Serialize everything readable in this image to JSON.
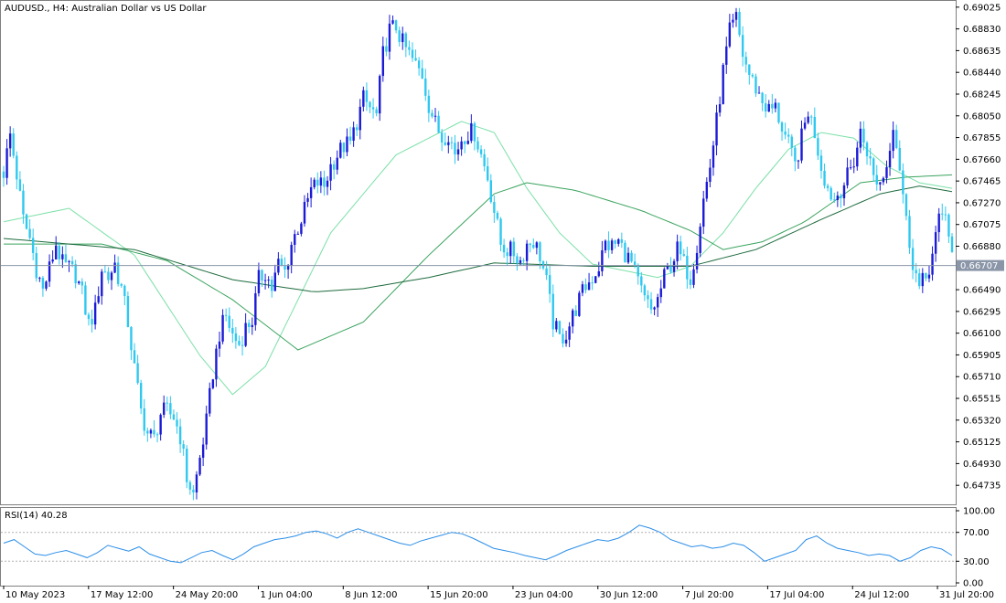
{
  "header": {
    "symbol": "AUDUSD.",
    "timeframe": "H4",
    "description": "Australian Dollar vs US Dollar",
    "title": "AUDUSD., H4:  Australian Dollar vs US Dollar"
  },
  "rsi_panel": {
    "label": "RSI(14) 40.28"
  },
  "current_price_label": "0.66707",
  "colors": {
    "bull_candle": "#1b1bd6",
    "bear_candle": "#2fc8f0",
    "ma_fast": "#7be0a8",
    "ma_mid": "#3aa35e",
    "ma_slow": "#1d6b3d",
    "rsi_line": "#2b8ee8",
    "price_line": "#8a96a8",
    "current_price_bg": "#8a96a8"
  },
  "chart_data": [
    {
      "type": "candlestick",
      "title": "AUDUSD., H4:  Australian Dollar vs US Dollar",
      "ylim": [
        0.6463,
        0.6904
      ],
      "y_ticks": [
        "0.69025",
        "0.68830",
        "0.68635",
        "0.68440",
        "0.68245",
        "0.68050",
        "0.67855",
        "0.67660",
        "0.67465",
        "0.67270",
        "0.67075",
        "0.66880",
        "0.66707",
        "0.66490",
        "0.66295",
        "0.66100",
        "0.65905",
        "0.65710",
        "0.65515",
        "0.65320",
        "0.65125",
        "0.64930",
        "0.64735"
      ],
      "x_ticks": [
        "10 May 2023",
        "17 May 12:00",
        "24 May 20:00",
        "1 Jun 04:00",
        "8 Jun 12:00",
        "15 Jun 20:00",
        "23 Jun 04:00",
        "30 Jun 12:00",
        "7 Jul 20:00",
        "17 Jul 04:00",
        "24 Jul 12:00",
        "31 Jul 20:00"
      ],
      "current_price": 0.66707,
      "close_path": [
        [
          0,
          0.6755
        ],
        [
          2,
          0.6788
        ],
        [
          4,
          0.6752
        ],
        [
          6,
          0.6712
        ],
        [
          8,
          0.6695
        ],
        [
          10,
          0.6668
        ],
        [
          12,
          0.6648
        ],
        [
          14,
          0.6668
        ],
        [
          16,
          0.669
        ],
        [
          18,
          0.6672
        ],
        [
          20,
          0.6668
        ],
        [
          22,
          0.6663
        ],
        [
          24,
          0.6645
        ],
        [
          26,
          0.6618
        ],
        [
          28,
          0.663
        ],
        [
          30,
          0.6668
        ],
        [
          32,
          0.666
        ],
        [
          34,
          0.6672
        ],
        [
          36,
          0.665
        ],
        [
          38,
          0.662
        ],
        [
          40,
          0.6578
        ],
        [
          42,
          0.654
        ],
        [
          44,
          0.652
        ],
        [
          46,
          0.6515
        ],
        [
          48,
          0.6538
        ],
        [
          50,
          0.654
        ],
        [
          52,
          0.6535
        ],
        [
          54,
          0.6518
        ],
        [
          56,
          0.648
        ],
        [
          58,
          0.6465
        ],
        [
          60,
          0.6498
        ],
        [
          62,
          0.653
        ],
        [
          64,
          0.6575
        ],
        [
          66,
          0.661
        ],
        [
          68,
          0.6625
        ],
        [
          70,
          0.6608
        ],
        [
          72,
          0.66
        ],
        [
          74,
          0.6615
        ],
        [
          76,
          0.6622
        ],
        [
          78,
          0.6658
        ],
        [
          80,
          0.6665
        ],
        [
          82,
          0.665
        ],
        [
          84,
          0.6672
        ],
        [
          86,
          0.6665
        ],
        [
          88,
          0.669
        ],
        [
          90,
          0.6705
        ],
        [
          92,
          0.672
        ],
        [
          94,
          0.6738
        ],
        [
          96,
          0.6745
        ],
        [
          98,
          0.6742
        ],
        [
          100,
          0.676
        ],
        [
          102,
          0.677
        ],
        [
          104,
          0.6778
        ],
        [
          106,
          0.678
        ],
        [
          108,
          0.68
        ],
        [
          110,
          0.682
        ],
        [
          112,
          0.6812
        ],
        [
          114,
          0.6805
        ],
        [
          116,
          0.686
        ],
        [
          118,
          0.6882
        ],
        [
          120,
          0.6885
        ],
        [
          122,
          0.687
        ],
        [
          124,
          0.686
        ],
        [
          126,
          0.685
        ],
        [
          128,
          0.6842
        ],
        [
          130,
          0.6815
        ],
        [
          132,
          0.6798
        ],
        [
          134,
          0.6785
        ],
        [
          136,
          0.679
        ],
        [
          138,
          0.677
        ],
        [
          140,
          0.6785
        ],
        [
          142,
          0.679
        ],
        [
          144,
          0.679
        ],
        [
          146,
          0.677
        ],
        [
          148,
          0.675
        ],
        [
          150,
          0.672
        ],
        [
          152,
          0.669
        ],
        [
          154,
          0.6685
        ],
        [
          156,
          0.6682
        ],
        [
          158,
          0.6675
        ],
        [
          160,
          0.669
        ],
        [
          162,
          0.6693
        ],
        [
          164,
          0.668
        ],
        [
          166,
          0.6655
        ],
        [
          168,
          0.662
        ],
        [
          170,
          0.6605
        ],
        [
          172,
          0.661
        ],
        [
          174,
          0.6625
        ],
        [
          176,
          0.664
        ],
        [
          178,
          0.6652
        ],
        [
          180,
          0.666
        ],
        [
          182,
          0.667
        ],
        [
          184,
          0.669
        ],
        [
          186,
          0.6688
        ],
        [
          188,
          0.6692
        ],
        [
          190,
          0.6682
        ],
        [
          192,
          0.6672
        ],
        [
          194,
          0.6655
        ],
        [
          196,
          0.664
        ],
        [
          198,
          0.663
        ],
        [
          200,
          0.664
        ],
        [
          202,
          0.666
        ],
        [
          204,
          0.6672
        ],
        [
          206,
          0.6685
        ],
        [
          208,
          0.6672
        ],
        [
          210,
          0.666
        ],
        [
          212,
          0.669
        ],
        [
          214,
          0.673
        ],
        [
          216,
          0.676
        ],
        [
          218,
          0.68
        ],
        [
          220,
          0.6845
        ],
        [
          222,
          0.688
        ],
        [
          224,
          0.6892
        ],
        [
          226,
          0.686
        ],
        [
          228,
          0.6842
        ],
        [
          230,
          0.683
        ],
        [
          232,
          0.6818
        ],
        [
          234,
          0.681
        ],
        [
          236,
          0.6812
        ],
        [
          238,
          0.6795
        ],
        [
          240,
          0.6778
        ],
        [
          242,
          0.676
        ],
        [
          244,
          0.6785
        ],
        [
          246,
          0.681
        ],
        [
          248,
          0.679
        ],
        [
          250,
          0.676
        ],
        [
          252,
          0.674
        ],
        [
          254,
          0.673
        ],
        [
          256,
          0.674
        ],
        [
          258,
          0.675
        ],
        [
          260,
          0.6765
        ],
        [
          262,
          0.679
        ],
        [
          264,
          0.6775
        ],
        [
          266,
          0.675
        ],
        [
          268,
          0.6745
        ],
        [
          270,
          0.676
        ],
        [
          272,
          0.68
        ],
        [
          274,
          0.676
        ],
        [
          276,
          0.671
        ],
        [
          278,
          0.6675
        ],
        [
          280,
          0.665
        ],
        [
          282,
          0.666
        ],
        [
          284,
          0.668
        ],
        [
          286,
          0.671
        ],
        [
          288,
          0.672
        ],
        [
          290,
          0.668
        ]
      ],
      "moving_averages": [
        {
          "color_key": "ma_fast",
          "path": [
            [
              0,
              0.671
            ],
            [
              20,
              0.6722
            ],
            [
              40,
              0.668
            ],
            [
              60,
              0.659
            ],
            [
              70,
              0.6555
            ],
            [
              80,
              0.658
            ],
            [
              100,
              0.67
            ],
            [
              120,
              0.677
            ],
            [
              140,
              0.68
            ],
            [
              150,
              0.679
            ],
            [
              160,
              0.674
            ],
            [
              170,
              0.67
            ],
            [
              180,
              0.6672
            ],
            [
              200,
              0.666
            ],
            [
              210,
              0.667
            ],
            [
              220,
              0.67
            ],
            [
              230,
              0.674
            ],
            [
              240,
              0.6775
            ],
            [
              250,
              0.679
            ],
            [
              260,
              0.6785
            ],
            [
              270,
              0.676
            ],
            [
              280,
              0.6745
            ],
            [
              290,
              0.674
            ]
          ]
        },
        {
          "color_key": "ma_mid",
          "path": [
            [
              0,
              0.669
            ],
            [
              30,
              0.669
            ],
            [
              50,
              0.6675
            ],
            [
              70,
              0.664
            ],
            [
              90,
              0.6595
            ],
            [
              110,
              0.662
            ],
            [
              130,
              0.668
            ],
            [
              150,
              0.6735
            ],
            [
              160,
              0.6745
            ],
            [
              175,
              0.6738
            ],
            [
              195,
              0.672
            ],
            [
              210,
              0.6702
            ],
            [
              220,
              0.6685
            ],
            [
              232,
              0.6692
            ],
            [
              245,
              0.671
            ],
            [
              262,
              0.6745
            ],
            [
              276,
              0.675
            ],
            [
              290,
              0.6752
            ]
          ]
        },
        {
          "color_key": "ma_slow",
          "path": [
            [
              0,
              0.6695
            ],
            [
              40,
              0.6685
            ],
            [
              70,
              0.6658
            ],
            [
              95,
              0.6647
            ],
            [
              110,
              0.665
            ],
            [
              130,
              0.666
            ],
            [
              150,
              0.6673
            ],
            [
              180,
              0.667
            ],
            [
              210,
              0.667
            ],
            [
              230,
              0.6685
            ],
            [
              250,
              0.6712
            ],
            [
              268,
              0.6735
            ],
            [
              280,
              0.6742
            ],
            [
              290,
              0.6737
            ]
          ]
        }
      ]
    },
    {
      "type": "line",
      "title": "RSI(14) 40.28",
      "ylim": [
        0,
        100
      ],
      "y_ticks": [
        "100.00",
        "70.00",
        "30.00",
        "0.00"
      ],
      "levels": [
        70,
        30
      ],
      "series": [
        {
          "name": "RSI(14)",
          "values": [
            55,
            60,
            50,
            40,
            38,
            42,
            45,
            40,
            35,
            42,
            52,
            48,
            44,
            50,
            40,
            35,
            30,
            28,
            35,
            42,
            45,
            38,
            32,
            40,
            50,
            55,
            60,
            62,
            65,
            70,
            72,
            68,
            62,
            70,
            75,
            70,
            65,
            60,
            55,
            52,
            58,
            62,
            66,
            70,
            68,
            62,
            55,
            48,
            45,
            42,
            38,
            35,
            32,
            38,
            45,
            50,
            55,
            60,
            58,
            62,
            70,
            80,
            76,
            70,
            60,
            55,
            50,
            52,
            48,
            50,
            55,
            52,
            42,
            30,
            35,
            40,
            45,
            60,
            65,
            55,
            48,
            45,
            42,
            38,
            40,
            38,
            30,
            35,
            45,
            50,
            47,
            38
          ]
        }
      ]
    }
  ]
}
